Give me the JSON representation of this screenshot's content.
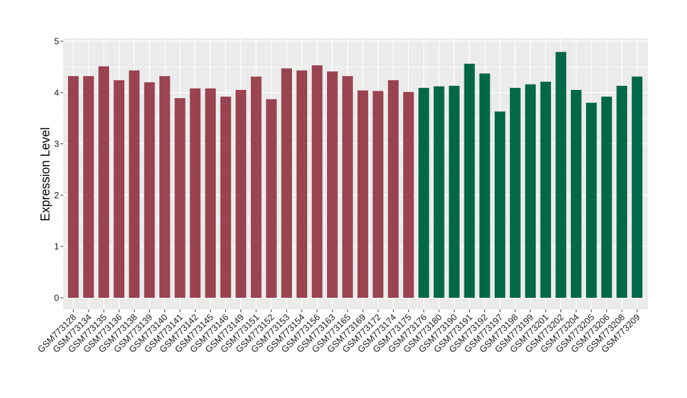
{
  "chart_data": {
    "type": "bar",
    "title": "",
    "xlabel": "",
    "ylabel": "Expression Level",
    "ylim": [
      0,
      5
    ],
    "yticks": [
      "0",
      "1",
      "2",
      "3",
      "4",
      "5"
    ],
    "grid": true,
    "legend": "none",
    "colors": {
      "group_a": "#9a4351",
      "group_b": "#036847",
      "panel": "#ebebeb",
      "grid": "#ffffff"
    },
    "categories": [
      "GSM773128",
      "GSM773134",
      "GSM773135",
      "GSM773136",
      "GSM773138",
      "GSM773139",
      "GSM773140",
      "GSM773141",
      "GSM773142",
      "GSM773145",
      "GSM773146",
      "GSM773149",
      "GSM773151",
      "GSM773152",
      "GSM773153",
      "GSM773154",
      "GSM773156",
      "GSM773163",
      "GSM773165",
      "GSM773169",
      "GSM773172",
      "GSM773174",
      "GSM773175",
      "GSM773176",
      "GSM773180",
      "GSM773190",
      "GSM773191",
      "GSM773192",
      "GSM773197",
      "GSM773198",
      "GSM773199",
      "GSM773201",
      "GSM773202",
      "GSM773204",
      "GSM773205",
      "GSM773206",
      "GSM773208",
      "GSM773209"
    ],
    "values": [
      4.32,
      4.32,
      4.51,
      4.24,
      4.43,
      4.2,
      4.32,
      3.89,
      4.08,
      4.08,
      3.92,
      4.05,
      4.31,
      3.87,
      4.47,
      4.43,
      4.53,
      4.41,
      4.32,
      4.04,
      4.03,
      4.24,
      4.01,
      4.09,
      4.12,
      4.13,
      4.56,
      4.37,
      3.63,
      4.09,
      4.16,
      4.21,
      4.79,
      4.05,
      3.8,
      3.92,
      4.13,
      4.31
    ],
    "groups": [
      "a",
      "a",
      "a",
      "a",
      "a",
      "a",
      "a",
      "a",
      "a",
      "a",
      "a",
      "a",
      "a",
      "a",
      "a",
      "a",
      "a",
      "a",
      "a",
      "a",
      "a",
      "a",
      "a",
      "b",
      "b",
      "b",
      "b",
      "b",
      "b",
      "b",
      "b",
      "b",
      "b",
      "b",
      "b",
      "b",
      "b",
      "b"
    ]
  }
}
